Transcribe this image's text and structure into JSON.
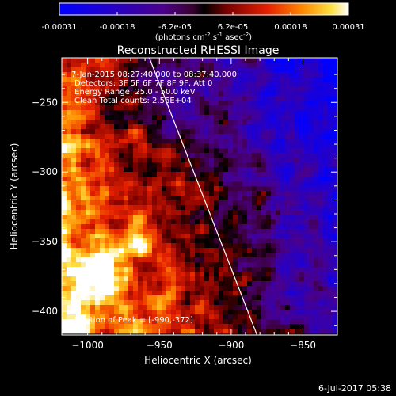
{
  "colorbar": {
    "ticks": [
      "-0.00031",
      "-0.00018",
      "-6.2e-05",
      "6.2e-05",
      "0.00018",
      "0.00031"
    ],
    "units_main": "(photons cm",
    "units_sup1": "-2",
    "units_mid1": " s",
    "units_sup2": "-1",
    "units_mid2": " asec",
    "units_sup3": "-2",
    "units_end": ")",
    "vmin": -0.00031,
    "vmax": 0.00031
  },
  "chart_data": {
    "type": "heatmap",
    "title": "Reconstructed RHESSI Image",
    "xlabel": "Heliocentric X (arcsec)",
    "ylabel": "Heliocentric Y (arcsec)",
    "xlim": [
      -1018,
      -826
    ],
    "ylim": [
      -417,
      -218
    ],
    "xticks": [
      -1000,
      -950,
      -900,
      -850
    ],
    "yticks": [
      -250,
      -300,
      -350,
      -400
    ],
    "peak": {
      "x": -990,
      "y": -372
    },
    "limb_line": [
      [
        -957,
        -218
      ],
      [
        -882,
        -417
      ]
    ]
  },
  "info": {
    "line1": "7-Jan-2015 08:27:40.000 to 08:37:40.000",
    "line2": "Detectors: 3F 5F 6F 7F 8F 9F, Att 0",
    "line3": "Energy Range: 25.0 - 50.0 keV",
    "line4": "Clean     Total counts: 2.56E+04",
    "peak_text": "Position of Peak = [-990,-372]"
  },
  "footer": {
    "timestamp": "6-Jul-2017 05:38"
  }
}
